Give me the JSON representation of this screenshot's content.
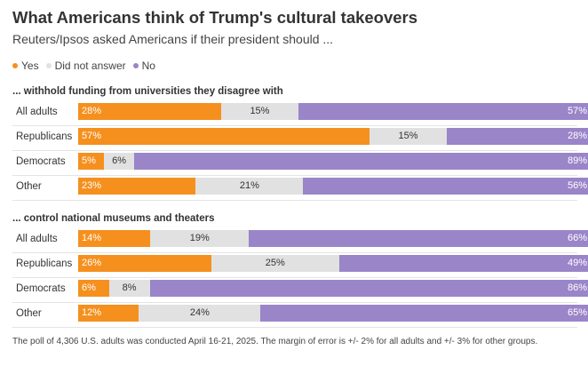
{
  "title": "What Americans think of Trump's cultural takeovers",
  "subtitle": "Reuters/Ipsos asked Americans if their president should ...",
  "legend": [
    {
      "label": "Yes",
      "color": "#f5901e"
    },
    {
      "label": "Did not answer",
      "color": "#e1e1e1"
    },
    {
      "label": "No",
      "color": "#9a85c8"
    }
  ],
  "footnote": "The poll of 4,306 U.S. adults was conducted April 16-21, 2025. The margin of error is +/- 2% for all adults and +/- 3% for other groups.",
  "chart_data": [
    {
      "type": "bar",
      "stacked": true,
      "orientation": "horizontal",
      "title": "... withhold funding from universities they disagree with",
      "categories": [
        "All adults",
        "Republicans",
        "Democrats",
        "Other"
      ],
      "series": [
        {
          "name": "Yes",
          "values": [
            28,
            57,
            5,
            23
          ],
          "labels": [
            "28%",
            "57%",
            "5%",
            "23%"
          ]
        },
        {
          "name": "Did not answer",
          "values": [
            15,
            15,
            6,
            21
          ],
          "labels": [
            "15%",
            "15%",
            "6%",
            "21%"
          ]
        },
        {
          "name": "No",
          "values": [
            57,
            28,
            89,
            56
          ],
          "labels": [
            "57%",
            "28%",
            "89%",
            "56%"
          ]
        }
      ]
    },
    {
      "type": "bar",
      "stacked": true,
      "orientation": "horizontal",
      "title": "... control national museums and theaters",
      "categories": [
        "All adults",
        "Republicans",
        "Democrats",
        "Other"
      ],
      "series": [
        {
          "name": "Yes",
          "values": [
            14,
            26,
            6,
            12
          ],
          "labels": [
            "14%",
            "26%",
            "6%",
            "12%"
          ]
        },
        {
          "name": "Did not answer",
          "values": [
            19,
            25,
            8,
            24
          ],
          "labels": [
            "19%",
            "25%",
            "8%",
            "24%"
          ]
        },
        {
          "name": "No",
          "values": [
            66,
            49,
            86,
            65
          ],
          "labels": [
            "66%",
            "49%",
            "86%",
            "65%"
          ]
        }
      ]
    }
  ]
}
